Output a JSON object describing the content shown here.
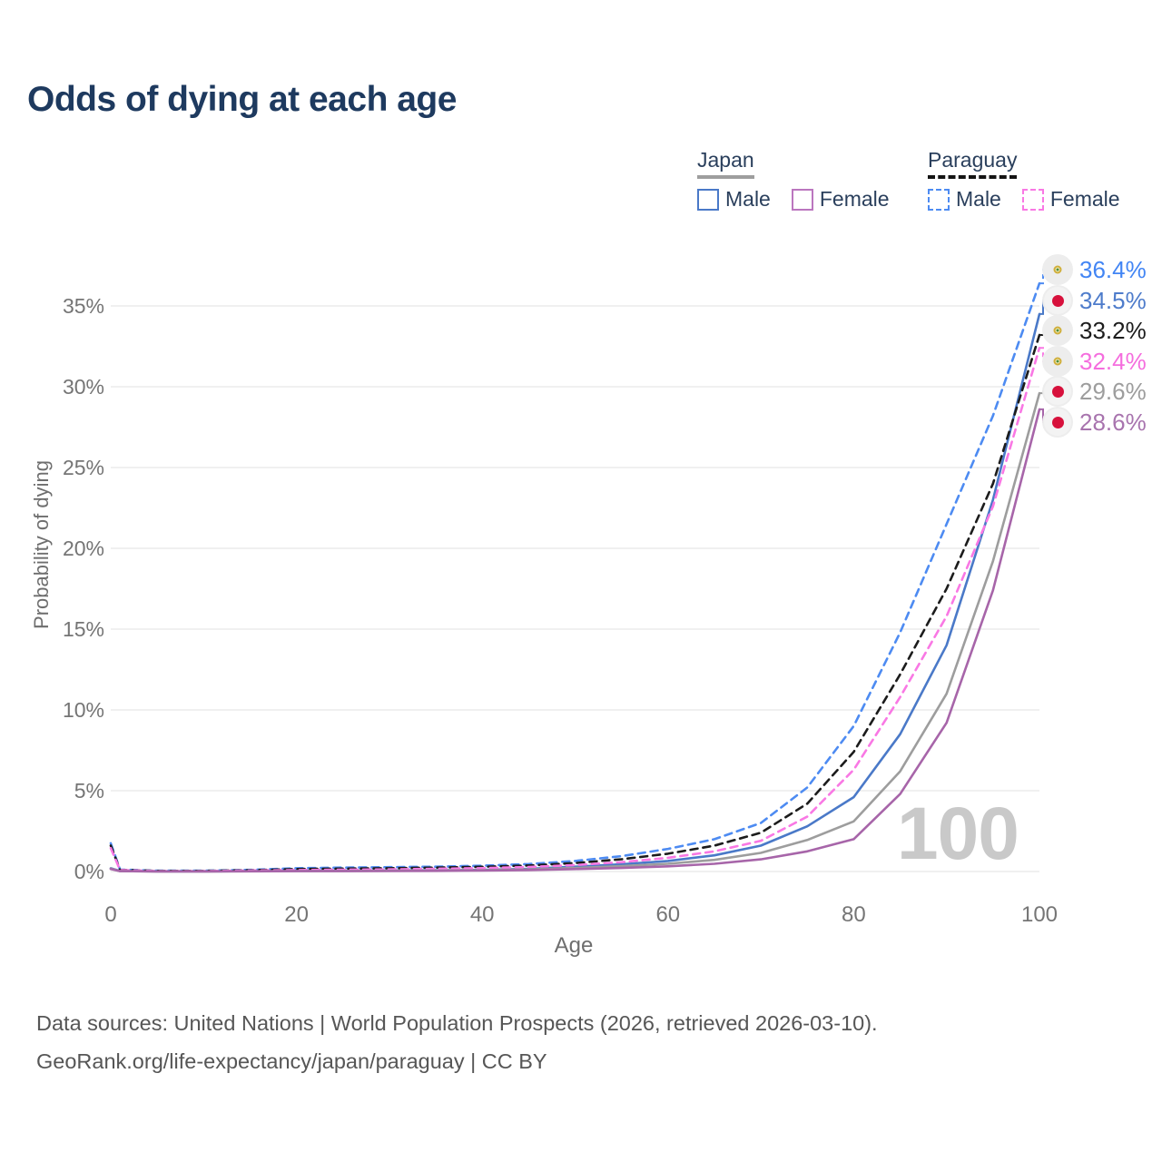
{
  "title": "Odds of dying at each age",
  "watermark": "100",
  "legend": {
    "groups": [
      {
        "name": "Japan",
        "underline": "solid",
        "underline_color": "#9e9e9e",
        "items": [
          {
            "label": "Male",
            "color": "#4a79c8",
            "style": "solid"
          },
          {
            "label": "Female",
            "color": "#bb76bf",
            "style": "solid"
          }
        ]
      },
      {
        "name": "Paraguay",
        "underline": "dashed",
        "underline_color": "#141414",
        "items": [
          {
            "label": "Male",
            "color": "#4d8bf2",
            "style": "dashed"
          },
          {
            "label": "Female",
            "color": "#f978e4",
            "style": "dashed"
          }
        ]
      }
    ]
  },
  "chart_data": {
    "type": "line",
    "title": "Odds of dying at each age",
    "xlabel": "Age",
    "ylabel": "Probability of dying",
    "xlim": [
      0,
      100
    ],
    "ylim_percent": [
      0,
      37.5
    ],
    "grid": true,
    "legend_position": "top-right",
    "x_ticks": [
      {
        "v": 0,
        "label": "0"
      },
      {
        "v": 20,
        "label": "20"
      },
      {
        "v": 40,
        "label": "40"
      },
      {
        "v": 60,
        "label": "60"
      },
      {
        "v": 80,
        "label": "80"
      },
      {
        "v": 100,
        "label": "100"
      }
    ],
    "y_ticks": [
      {
        "v": 0,
        "label": "0%"
      },
      {
        "v": 5,
        "label": "5%"
      },
      {
        "v": 10,
        "label": "10%"
      },
      {
        "v": 15,
        "label": "15%"
      },
      {
        "v": 20,
        "label": "20%"
      },
      {
        "v": 25,
        "label": "25%"
      },
      {
        "v": 30,
        "label": "30%"
      },
      {
        "v": 35,
        "label": "35%"
      }
    ],
    "x": [
      0,
      1,
      5,
      10,
      15,
      20,
      25,
      30,
      35,
      40,
      45,
      50,
      55,
      60,
      65,
      70,
      75,
      80,
      85,
      90,
      95,
      100
    ],
    "series": [
      {
        "name": "Paraguay Male",
        "country": "Paraguay",
        "flag": "py",
        "dashed": true,
        "color": "#4d8bf2",
        "label_color": "#4285f4",
        "end_label": "36.4%",
        "end_value_percent": 36.4,
        "values": [
          1.75,
          0.12,
          0.05,
          0.05,
          0.1,
          0.2,
          0.24,
          0.27,
          0.3,
          0.36,
          0.46,
          0.65,
          0.95,
          1.4,
          2.0,
          3.0,
          5.2,
          9.0,
          14.8,
          21.5,
          28.2,
          36.4
        ]
      },
      {
        "name": "Japan Male",
        "country": "Japan",
        "flag": "jp",
        "dashed": false,
        "color": "#4a79c8",
        "label_color": "#4e7ccb",
        "end_label": "34.5%",
        "end_value_percent": 34.5,
        "values": [
          0.2,
          0.03,
          0.01,
          0.01,
          0.02,
          0.04,
          0.05,
          0.06,
          0.08,
          0.1,
          0.17,
          0.3,
          0.45,
          0.65,
          1.0,
          1.6,
          2.8,
          4.6,
          8.5,
          14.0,
          23.0,
          34.5
        ]
      },
      {
        "name": "Paraguay",
        "country": "Paraguay",
        "flag": "py",
        "dashed": true,
        "color": "#1c1c1c",
        "label_color": "#1c1c1c",
        "end_label": "33.2%",
        "end_value_percent": 33.2,
        "values": [
          1.6,
          0.1,
          0.04,
          0.04,
          0.08,
          0.15,
          0.18,
          0.2,
          0.24,
          0.29,
          0.37,
          0.52,
          0.76,
          1.1,
          1.6,
          2.4,
          4.2,
          7.4,
          12.2,
          17.5,
          24.0,
          33.2
        ]
      },
      {
        "name": "Paraguay Female",
        "country": "Paraguay",
        "flag": "py",
        "dashed": true,
        "color": "#f978e4",
        "label_color": "#f56ede",
        "end_label": "32.4%",
        "end_value_percent": 32.4,
        "values": [
          1.45,
          0.09,
          0.03,
          0.03,
          0.06,
          0.09,
          0.11,
          0.13,
          0.17,
          0.21,
          0.28,
          0.4,
          0.58,
          0.85,
          1.25,
          1.9,
          3.4,
          6.3,
          10.8,
          15.8,
          22.6,
          32.4
        ]
      },
      {
        "name": "Japan",
        "country": "Japan",
        "flag": "jp",
        "dashed": false,
        "color": "#9d9d9d",
        "label_color": "#9d9d9d",
        "end_label": "29.6%",
        "end_value_percent": 29.6,
        "values": [
          0.18,
          0.025,
          0.008,
          0.008,
          0.015,
          0.03,
          0.035,
          0.045,
          0.06,
          0.08,
          0.13,
          0.22,
          0.33,
          0.48,
          0.72,
          1.15,
          1.95,
          3.1,
          6.2,
          11.0,
          19.2,
          29.6
        ]
      },
      {
        "name": "Japan Female",
        "country": "Japan",
        "flag": "jp",
        "dashed": false,
        "color": "#a765a9",
        "label_color": "#a874ae",
        "end_label": "28.6%",
        "end_value_percent": 28.6,
        "values": [
          0.16,
          0.02,
          0.007,
          0.007,
          0.01,
          0.02,
          0.025,
          0.03,
          0.04,
          0.06,
          0.09,
          0.15,
          0.22,
          0.32,
          0.48,
          0.75,
          1.25,
          2.0,
          4.8,
          9.2,
          17.4,
          28.6
        ]
      }
    ]
  },
  "footer": {
    "line1": "Data sources: United Nations | World Population Prospects (2026, retrieved 2026-03-10).",
    "line2": "GeoRank.org/life-expectancy/japan/paraguay | CC BY"
  }
}
